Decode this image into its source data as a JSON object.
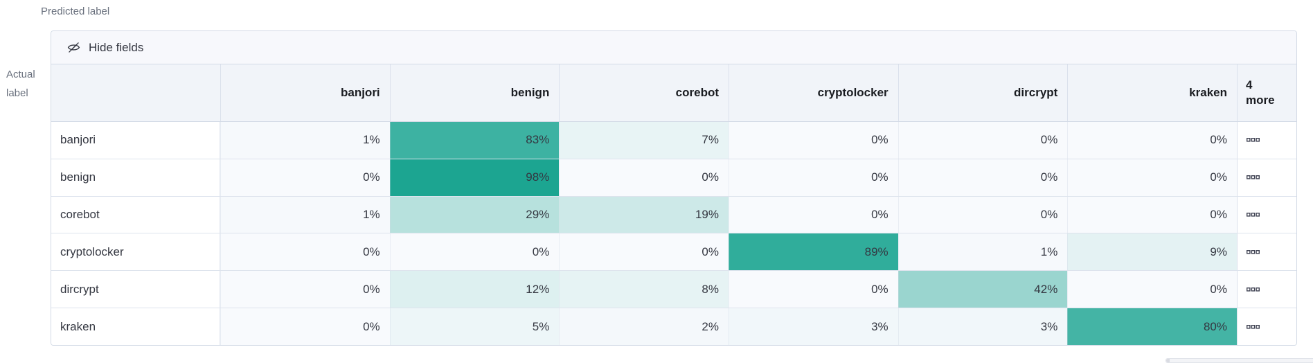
{
  "axis": {
    "predicted": "Predicted label",
    "actual_line1": "Actual",
    "actual_line2": "label"
  },
  "toolbar": {
    "hide_fields": "Hide fields",
    "eye_icon": "eye-closed-icon"
  },
  "columns": [
    "banjori",
    "benign",
    "corebot",
    "cryptolocker",
    "dircrypt",
    "kraken"
  ],
  "more_column": {
    "line1": "4",
    "line2": "more",
    "actions_icon": "boxes-horizontal-icon"
  },
  "value_suffix": "%",
  "matrix": {
    "rows": [
      {
        "label": "banjori",
        "values": [
          1,
          83,
          7,
          0,
          0,
          0
        ]
      },
      {
        "label": "benign",
        "values": [
          0,
          98,
          0,
          0,
          0,
          0
        ]
      },
      {
        "label": "corebot",
        "values": [
          1,
          29,
          19,
          0,
          0,
          0
        ]
      },
      {
        "label": "cryptolocker",
        "values": [
          0,
          0,
          0,
          89,
          1,
          9
        ]
      },
      {
        "label": "dircrypt",
        "values": [
          0,
          12,
          8,
          0,
          42,
          0
        ]
      },
      {
        "label": "kraken",
        "values": [
          0,
          5,
          2,
          3,
          3,
          80
        ]
      }
    ]
  },
  "colors": {
    "heat_zero": "#f8fafd",
    "heat_base": "#17a38f",
    "header_bg": "#f1f4f9",
    "hide_row_bg": "#f7f8fc",
    "border": "#d3dae6",
    "text": "#343741",
    "muted_text": "#69707d"
  }
}
